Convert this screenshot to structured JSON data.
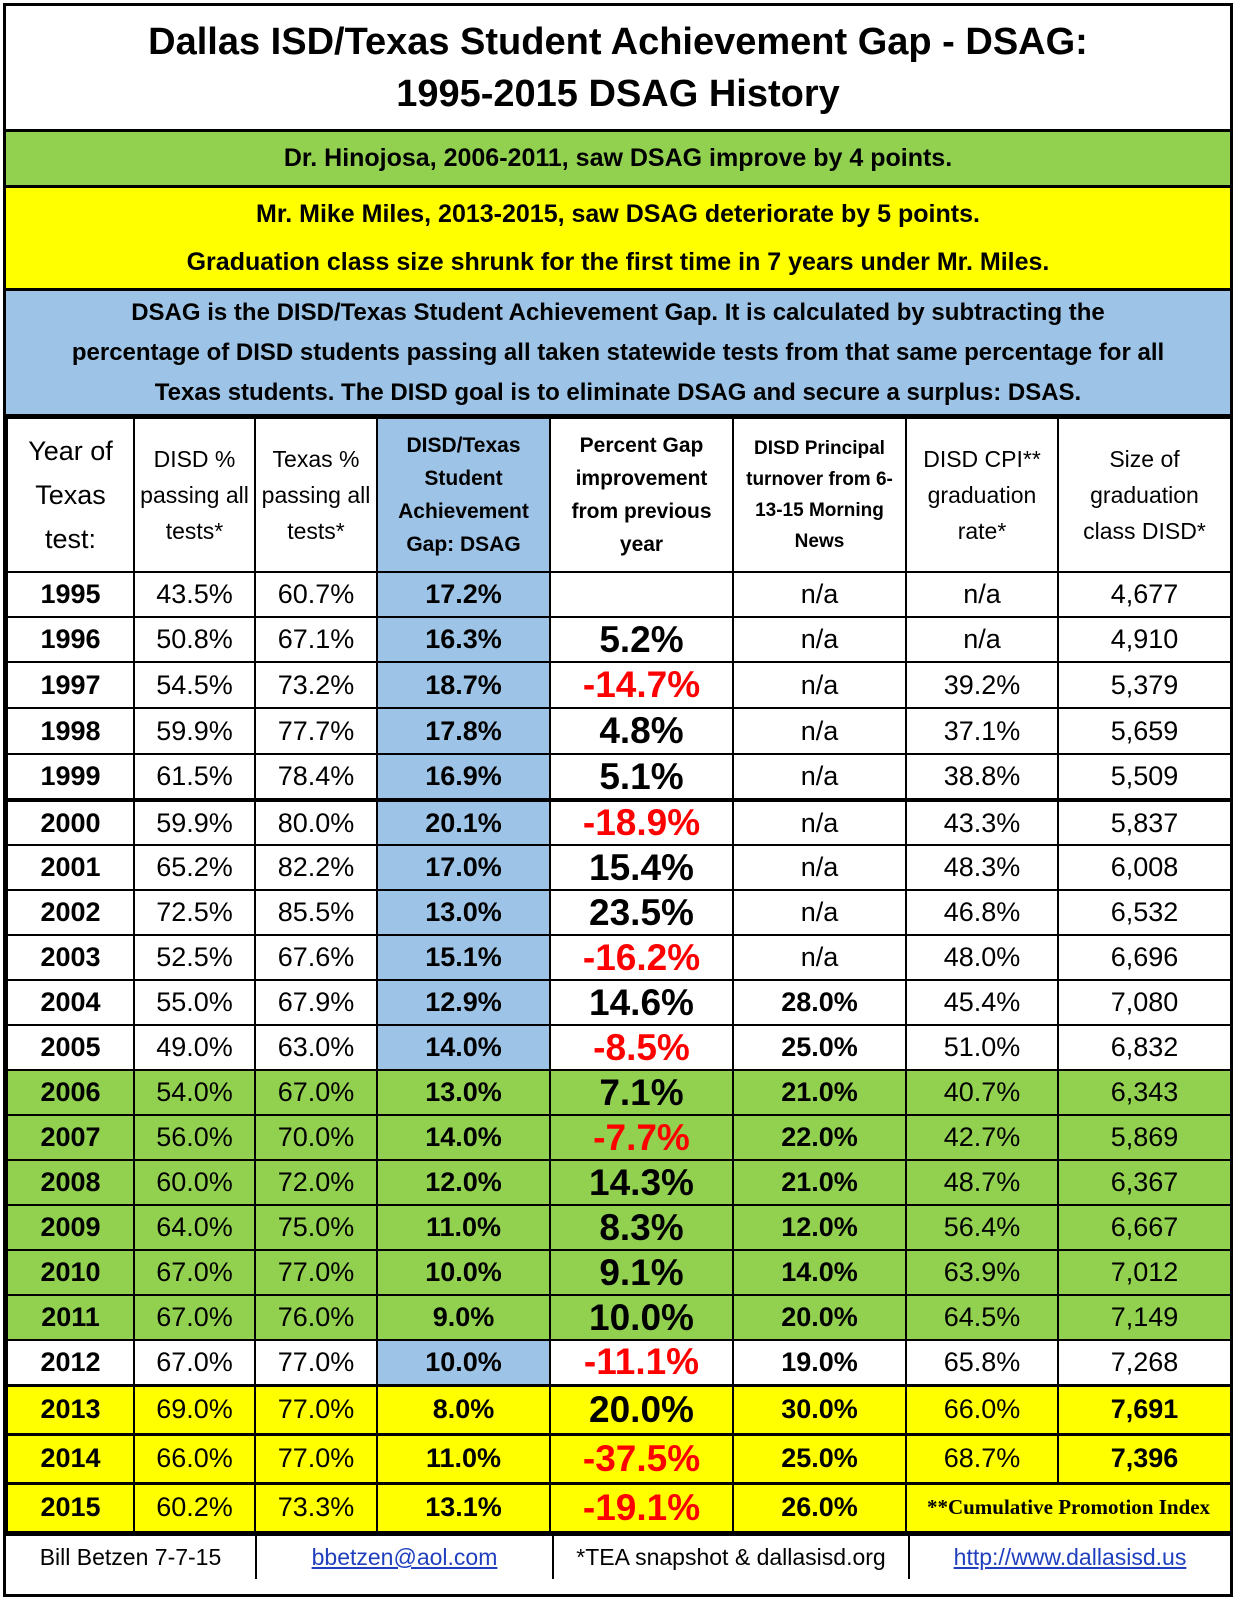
{
  "title": {
    "line1": "Dallas ISD/Texas Student Achievement Gap - DSAG:",
    "line2": "1995-2015 DSAG History"
  },
  "bands": {
    "green": "Dr. Hinojosa, 2006-2011, saw DSAG improve by 4 points.",
    "yellow1": "Mr. Mike Miles, 2013-2015, saw DSAG deteriorate by 5 points.",
    "yellow2": "Graduation class size shrunk for the first time in 7 years under Mr. Miles.",
    "blue1": "DSAG is the DISD/Texas Student Achievement Gap.  It is calculated by subtracting the",
    "blue2": "percentage of DISD students passing all taken statewide tests from that same percentage for all",
    "blue3": "Texas students.  The DISD goal is to eliminate DSAG and secure a surplus: DSAS."
  },
  "chart_data": {
    "type": "table",
    "headers": [
      "Year of Texas test:",
      "DISD % passing all tests*",
      "Texas % passing all tests*",
      "DISD/Texas Student Achievement Gap: DSAG",
      "Percent Gap improvement from previous year",
      "DISD Principal turnover from 6-13-15 Morning News",
      "DISD CPI** graduation rate*",
      "Size of graduation class DISD*"
    ],
    "rows": [
      {
        "year": "1995",
        "disd": "43.5%",
        "texas": "60.7%",
        "dsag": "17.2%",
        "improve": "",
        "turnover": "n/a",
        "grad": "n/a",
        "size": "4,677"
      },
      {
        "year": "1996",
        "disd": "50.8%",
        "texas": "67.1%",
        "dsag": "16.3%",
        "improve": "5.2%",
        "turnover": "n/a",
        "grad": "n/a",
        "size": "4,910"
      },
      {
        "year": "1997",
        "disd": "54.5%",
        "texas": "73.2%",
        "dsag": "18.7%",
        "improve": "-14.7%",
        "turnover": "n/a",
        "grad": "39.2%",
        "size": "5,379"
      },
      {
        "year": "1998",
        "disd": "59.9%",
        "texas": "77.7%",
        "dsag": "17.8%",
        "improve": "4.8%",
        "turnover": "n/a",
        "grad": "37.1%",
        "size": "5,659"
      },
      {
        "year": "1999",
        "disd": "61.5%",
        "texas": "78.4%",
        "dsag": "16.9%",
        "improve": "5.1%",
        "turnover": "n/a",
        "grad": "38.8%",
        "size": "5,509"
      },
      {
        "year": "2000",
        "disd": "59.9%",
        "texas": "80.0%",
        "dsag": "20.1%",
        "improve": "-18.9%",
        "turnover": "n/a",
        "grad": "43.3%",
        "size": "5,837"
      },
      {
        "year": "2001",
        "disd": "65.2%",
        "texas": "82.2%",
        "dsag": "17.0%",
        "improve": "15.4%",
        "turnover": "n/a",
        "grad": "48.3%",
        "size": "6,008"
      },
      {
        "year": "2002",
        "disd": "72.5%",
        "texas": "85.5%",
        "dsag": "13.0%",
        "improve": "23.5%",
        "turnover": "n/a",
        "grad": "46.8%",
        "size": "6,532"
      },
      {
        "year": "2003",
        "disd": "52.5%",
        "texas": "67.6%",
        "dsag": "15.1%",
        "improve": "-16.2%",
        "turnover": "n/a",
        "grad": "48.0%",
        "size": "6,696"
      },
      {
        "year": "2004",
        "disd": "55.0%",
        "texas": "67.9%",
        "dsag": "12.9%",
        "improve": "14.6%",
        "turnover": "28.0%",
        "grad": "45.4%",
        "size": "7,080"
      },
      {
        "year": "2005",
        "disd": "49.0%",
        "texas": "63.0%",
        "dsag": "14.0%",
        "improve": "-8.5%",
        "turnover": "25.0%",
        "grad": "51.0%",
        "size": "6,832"
      },
      {
        "year": "2006",
        "disd": "54.0%",
        "texas": "67.0%",
        "dsag": "13.0%",
        "improve": "7.1%",
        "turnover": "21.0%",
        "grad": "40.7%",
        "size": "6,343"
      },
      {
        "year": "2007",
        "disd": "56.0%",
        "texas": "70.0%",
        "dsag": "14.0%",
        "improve": "-7.7%",
        "turnover": "22.0%",
        "grad": "42.7%",
        "size": "5,869"
      },
      {
        "year": "2008",
        "disd": "60.0%",
        "texas": "72.0%",
        "dsag": "12.0%",
        "improve": "14.3%",
        "turnover": "21.0%",
        "grad": "48.7%",
        "size": "6,367"
      },
      {
        "year": "2009",
        "disd": "64.0%",
        "texas": "75.0%",
        "dsag": "11.0%",
        "improve": "8.3%",
        "turnover": "12.0%",
        "grad": "56.4%",
        "size": "6,667"
      },
      {
        "year": "2010",
        "disd": "67.0%",
        "texas": "77.0%",
        "dsag": "10.0%",
        "improve": "9.1%",
        "turnover": "14.0%",
        "grad": "63.9%",
        "size": "7,012"
      },
      {
        "year": "2011",
        "disd": "67.0%",
        "texas": "76.0%",
        "dsag": "9.0%",
        "improve": "10.0%",
        "turnover": "20.0%",
        "grad": "64.5%",
        "size": "7,149"
      },
      {
        "year": "2012",
        "disd": "67.0%",
        "texas": "77.0%",
        "dsag": "10.0%",
        "improve": "-11.1%",
        "turnover": "19.0%",
        "grad": "65.8%",
        "size": "7,268"
      },
      {
        "year": "2013",
        "disd": "69.0%",
        "texas": "77.0%",
        "dsag": "8.0%",
        "improve": "20.0%",
        "turnover": "30.0%",
        "grad": "66.0%",
        "size": "7,691"
      },
      {
        "year": "2014",
        "disd": "66.0%",
        "texas": "77.0%",
        "dsag": "11.0%",
        "improve": "-37.5%",
        "turnover": "25.0%",
        "grad": "68.7%",
        "size": "7,396"
      },
      {
        "year": "2015",
        "disd": "60.2%",
        "texas": "73.3%",
        "dsag": "13.1%",
        "improve": "-19.1%",
        "turnover": "26.0%",
        "grad": "**Cumulative Promotion Index",
        "size": ""
      }
    ]
  },
  "colors": {
    "green": "#92d050",
    "yellow": "#ffff00",
    "blue": "#9dc3e6",
    "negative": "#ff0000"
  },
  "footer": {
    "author": "Bill Betzen 7-7-15",
    "email": "bbetzen@aol.com",
    "source": "*TEA snapshot & dallasisd.org",
    "url": "http://www.dallasisd.us"
  }
}
